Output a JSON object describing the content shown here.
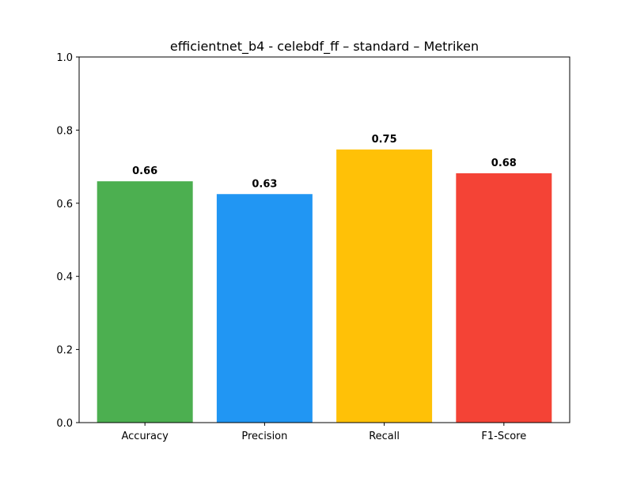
{
  "chart_data": {
    "type": "bar",
    "title": "efficientnet_b4 - celebdf_ff – standard – Metriken",
    "xlabel": "",
    "ylabel": "",
    "categories": [
      "Accuracy",
      "Precision",
      "Recall",
      "F1-Score"
    ],
    "values": [
      0.66,
      0.625,
      0.747,
      0.682
    ],
    "data_labels": [
      "0.66",
      "0.63",
      "0.75",
      "0.68"
    ],
    "colors": [
      "#4caf50",
      "#2196f3",
      "#ffc107",
      "#f44336"
    ],
    "ylim": [
      0,
      1.0
    ],
    "yticks": [
      0.0,
      0.2,
      0.4,
      0.6,
      0.8,
      1.0
    ],
    "ytick_labels": [
      "0.0",
      "0.2",
      "0.4",
      "0.6",
      "0.8",
      "1.0"
    ],
    "grid": false,
    "legend": "none"
  }
}
